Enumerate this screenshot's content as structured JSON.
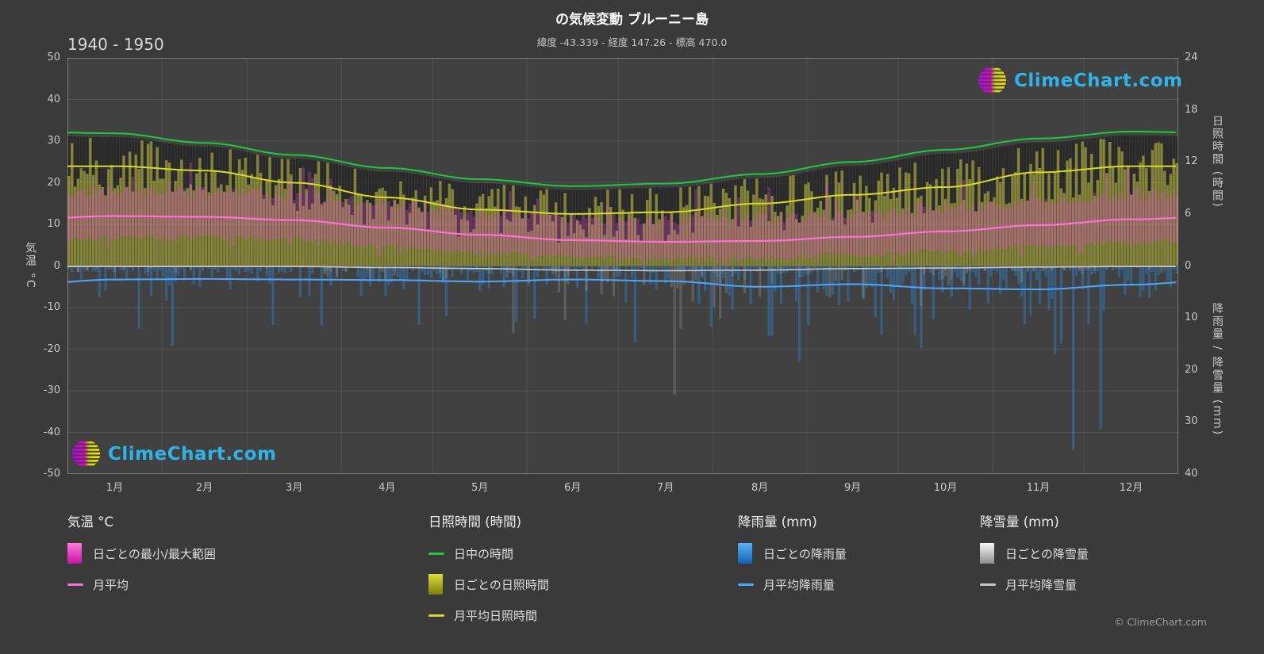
{
  "header": {
    "title": "の気候変動 ブルーニー島",
    "subtitle": "緯度 -43.339 - 経度 147.26 - 標高 470.0",
    "period": "1940 - 1950"
  },
  "axes": {
    "left_label": "気温 °C",
    "right_top_label": "日照時間 (時間)",
    "right_bottom_label": "降雨量 / 降雪量 (mm)"
  },
  "legend": {
    "temp": {
      "title": "気温 °C",
      "range_label": "日ごとの最小/最大範囲",
      "avg_label": "月平均"
    },
    "sun": {
      "title": "日照時間 (時間)",
      "daylight_label": "日中の時間",
      "daily_label": "日ごとの日照時間",
      "avg_label": "月平均日照時間"
    },
    "rain": {
      "title": "降雨量 (mm)",
      "daily_label": "日ごとの降雨量",
      "avg_label": "月平均降雨量"
    },
    "snow": {
      "title": "降雪量 (mm)",
      "daily_label": "日ごとの降雪量",
      "avg_label": "月平均降雪量"
    }
  },
  "branding": {
    "logo_text": "ClimeChart.com",
    "copyright": "© ClimeChart.com"
  },
  "colors": {
    "background": "#3a3a3a",
    "plot_background": "#414141",
    "daylight_line": "#1ec93e",
    "sunshine_fill": "#c8c82d",
    "sunshine_line": "#d9d928",
    "temp_range_fill": "#e94fd2",
    "temp_avg_line": "#ff6fd8",
    "rain_fill": "#2e86d4",
    "rain_line": "#4da6ff",
    "snow_fill": "#cfcfcf",
    "snow_line": "#c8c8c8",
    "logo_text": "#2fb3e8"
  },
  "chart_data": {
    "type": "climate-composite",
    "title": "の気候変動 ブルーニー島",
    "subtitle": "緯度 -43.339 - 経度 147.26 - 標高 470.0",
    "period": "1940 - 1950",
    "categories": [
      "1月",
      "2月",
      "3月",
      "4月",
      "5月",
      "6月",
      "7月",
      "8月",
      "9月",
      "10月",
      "11月",
      "12月"
    ],
    "axes": {
      "temperature_c": {
        "min": -50,
        "max": 50,
        "ticks": [
          50,
          40,
          30,
          20,
          10,
          0,
          -10,
          -20,
          -30,
          -40,
          -50
        ]
      },
      "sunshine_hours": {
        "min": 0,
        "max": 24,
        "ticks": [
          24,
          18,
          12,
          6,
          0
        ]
      },
      "precipitation_mm": {
        "min": 0,
        "max": 40,
        "ticks": [
          10,
          20,
          30,
          40
        ],
        "direction": "down"
      }
    },
    "series": {
      "daylight_hours": [
        15.3,
        14.2,
        12.8,
        11.3,
        10.0,
        9.2,
        9.5,
        10.6,
        12.0,
        13.4,
        14.7,
        15.5
      ],
      "sunshine_avg_hours": [
        11.5,
        11.0,
        9.6,
        7.9,
        6.5,
        6.0,
        6.2,
        7.2,
        8.2,
        9.1,
        10.8,
        11.5
      ],
      "temp_avg_c": [
        12.0,
        11.8,
        11.0,
        9.2,
        7.5,
        6.2,
        5.8,
        6.0,
        7.0,
        8.3,
        9.8,
        11.2
      ],
      "temp_max_avg_c": [
        16.5,
        16.5,
        15.5,
        13.5,
        11.5,
        10.0,
        9.5,
        10.0,
        11.0,
        12.5,
        14.0,
        15.5
      ],
      "temp_min_avg_c": [
        7.5,
        7.5,
        7.0,
        5.5,
        4.0,
        3.0,
        2.5,
        2.5,
        3.5,
        4.5,
        5.5,
        6.5
      ],
      "rain_avg_mm_day": [
        2.6,
        2.5,
        2.6,
        2.7,
        3.0,
        2.6,
        2.9,
        4.0,
        3.5,
        4.3,
        4.5,
        3.6
      ],
      "snow_avg_mm_day": [
        0.1,
        0.1,
        0.1,
        0.3,
        0.5,
        0.8,
        0.9,
        0.8,
        0.5,
        0.4,
        0.2,
        0.1
      ]
    },
    "legend_position": "bottom",
    "grid": true
  }
}
